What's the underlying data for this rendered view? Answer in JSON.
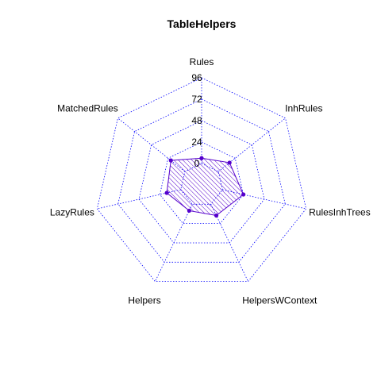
{
  "chart_data": {
    "type": "radar",
    "title": "TableHelpers",
    "axes": [
      "Rules",
      "InhRules",
      "RulesInhTrees",
      "HelpersWContext",
      "Helpers",
      "LazyRules",
      "MatchedRules"
    ],
    "range": [
      0,
      96
    ],
    "ticks": [
      "0",
      "24",
      "48",
      "72",
      "96"
    ],
    "series": [
      {
        "values": [
          6,
          16,
          24,
          14,
          8,
          16,
          20
        ]
      }
    ],
    "colors": {
      "grid": "#0000ff",
      "series": "#5500cc"
    }
  }
}
